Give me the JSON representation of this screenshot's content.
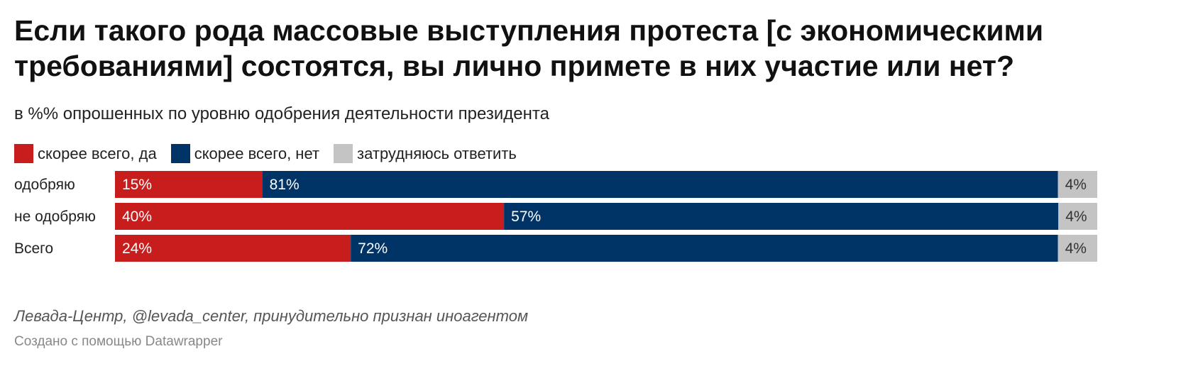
{
  "title": "Если такого рода массовые выступления протеста [с экономическими требованиями] состоятся, вы лично примете в них участие или нет?",
  "subtitle": "в %% опрошенных по уровню одобрения деятельности президента",
  "notes": "Левада-Центр, @levada_center, принудительно признан иноагентом",
  "credit": "Создано с помощью Datawrapper",
  "colors": {
    "yes": "#c71e1d",
    "no": "#003366",
    "unsure": "#c4c4c4"
  },
  "chart_data": {
    "type": "bar",
    "orientation": "horizontal",
    "stacked": true,
    "title": "Если такого рода массовые выступления протеста [с экономическими требованиями] состоятся, вы лично примете в них участие или нет?",
    "subtitle": "в %% опрошенных по уровню одобрения деятельности президента",
    "categories": [
      "одобряю",
      "не одобряю",
      "Всего"
    ],
    "series": [
      {
        "name": "скорее всего, да",
        "color": "#c71e1d",
        "values": [
          15,
          40,
          24
        ],
        "labels": [
          "15%",
          "40%",
          "24%"
        ]
      },
      {
        "name": "скорее всего, нет",
        "color": "#003366",
        "values": [
          81,
          57,
          72
        ],
        "labels": [
          "81%",
          "57%",
          "72%"
        ]
      },
      {
        "name": "затрудняюсь ответить",
        "color": "#c4c4c4",
        "values": [
          4,
          4,
          4
        ],
        "labels": [
          "4%",
          "4%",
          "4%"
        ]
      }
    ],
    "unit": "%",
    "xlim": [
      0,
      100
    ],
    "legend": "top-left",
    "grid": false
  }
}
